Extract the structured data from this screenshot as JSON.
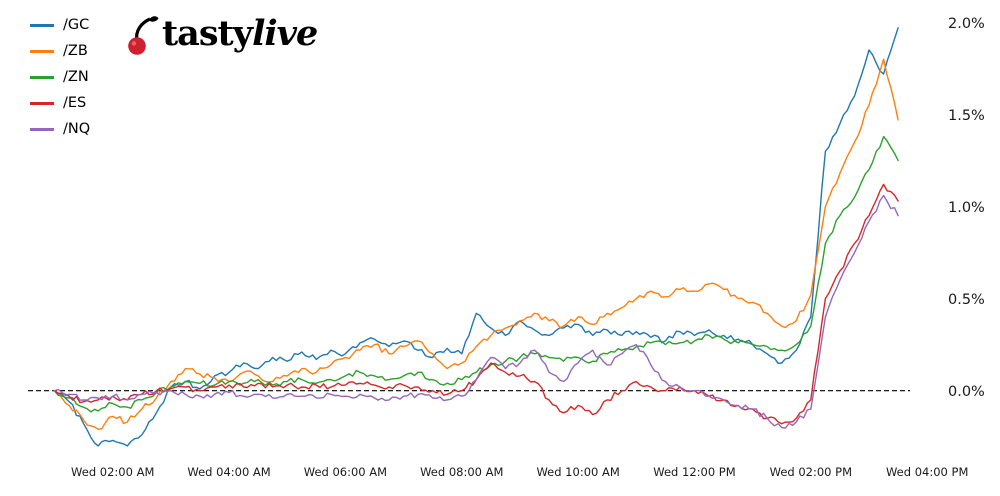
{
  "logo": {
    "tasty": "tasty",
    "live": "live"
  },
  "chart_data": {
    "type": "line",
    "title": "",
    "x_unit": "hour_of_day_wednesday",
    "legend_position": "upper left",
    "grid": false,
    "zero_line": 0.0,
    "xlim": [
      0.75,
      16.1
    ],
    "ylim": [
      -0.42,
      2.1
    ],
    "x_axis": {
      "tick_positions": [
        2,
        4,
        6,
        8,
        10,
        12,
        14,
        16
      ],
      "tick_labels": [
        "Wed 02:00 AM",
        "Wed 04:00 AM",
        "Wed 06:00 AM",
        "Wed 08:00 AM",
        "Wed 10:00 AM",
        "Wed 12:00 PM",
        "Wed 02:00 PM",
        "Wed 04:00 PM"
      ]
    },
    "y_axis": {
      "side": "right",
      "tick_values": [
        0.0,
        0.5,
        1.0,
        1.5,
        2.0
      ],
      "tick_labels": [
        "0.0%",
        "0.5%",
        "1.0%",
        "1.5%",
        "2.0%"
      ]
    },
    "x": [
      1,
      1.25,
      1.5,
      1.75,
      2,
      2.25,
      2.5,
      2.75,
      3,
      3.25,
      3.5,
      3.75,
      4,
      4.25,
      4.5,
      4.75,
      5,
      5.25,
      5.5,
      5.75,
      6,
      6.25,
      6.5,
      6.75,
      7,
      7.25,
      7.5,
      7.75,
      8,
      8.25,
      8.5,
      8.75,
      9,
      9.25,
      9.5,
      9.75,
      10,
      10.25,
      10.5,
      10.75,
      11,
      11.25,
      11.5,
      11.75,
      12,
      12.25,
      12.5,
      12.75,
      13,
      13.25,
      13.5,
      13.75,
      14,
      14.25,
      14.5,
      14.75,
      15,
      15.25,
      15.5
    ],
    "series": [
      {
        "name": "/GC",
        "color": "#1f77b4",
        "values": [
          0.0,
          -0.06,
          -0.18,
          -0.3,
          -0.27,
          -0.3,
          -0.24,
          -0.12,
          0.02,
          0.05,
          0.01,
          0.08,
          0.1,
          0.15,
          0.12,
          0.18,
          0.16,
          0.21,
          0.17,
          0.22,
          0.2,
          0.26,
          0.28,
          0.24,
          0.27,
          0.22,
          0.18,
          0.23,
          0.2,
          0.42,
          0.34,
          0.3,
          0.38,
          0.33,
          0.3,
          0.34,
          0.36,
          0.3,
          0.33,
          0.3,
          0.32,
          0.29,
          0.27,
          0.32,
          0.3,
          0.33,
          0.3,
          0.28,
          0.25,
          0.2,
          0.15,
          0.22,
          0.4,
          1.3,
          1.45,
          1.6,
          1.85,
          1.72,
          1.97
        ]
      },
      {
        "name": "/ZB",
        "color": "#ff7f0e",
        "values": [
          0.0,
          -0.08,
          -0.16,
          -0.21,
          -0.14,
          -0.17,
          -0.1,
          -0.04,
          0.05,
          0.12,
          0.09,
          0.07,
          0.05,
          0.1,
          0.08,
          0.05,
          0.08,
          0.12,
          0.1,
          0.14,
          0.18,
          0.22,
          0.25,
          0.2,
          0.24,
          0.27,
          0.2,
          0.12,
          0.15,
          0.24,
          0.3,
          0.34,
          0.38,
          0.42,
          0.38,
          0.35,
          0.4,
          0.36,
          0.42,
          0.45,
          0.5,
          0.54,
          0.51,
          0.55,
          0.54,
          0.58,
          0.55,
          0.5,
          0.48,
          0.42,
          0.35,
          0.38,
          0.52,
          1.0,
          1.18,
          1.35,
          1.55,
          1.8,
          1.47
        ]
      },
      {
        "name": "/ZN",
        "color": "#2ca02c",
        "values": [
          0.0,
          -0.04,
          -0.09,
          -0.11,
          -0.07,
          -0.09,
          -0.05,
          -0.01,
          0.02,
          0.05,
          0.04,
          0.03,
          0.05,
          0.04,
          0.06,
          0.03,
          0.05,
          0.06,
          0.04,
          0.06,
          0.08,
          0.1,
          0.08,
          0.06,
          0.08,
          0.1,
          0.06,
          0.04,
          0.06,
          0.1,
          0.14,
          0.16,
          0.18,
          0.2,
          0.18,
          0.16,
          0.18,
          0.16,
          0.2,
          0.22,
          0.24,
          0.26,
          0.25,
          0.26,
          0.27,
          0.3,
          0.28,
          0.26,
          0.25,
          0.24,
          0.22,
          0.25,
          0.35,
          0.8,
          0.95,
          1.05,
          1.2,
          1.38,
          1.25
        ]
      },
      {
        "name": "/ES",
        "color": "#d62728",
        "values": [
          0.0,
          -0.03,
          -0.06,
          -0.05,
          -0.03,
          -0.05,
          -0.02,
          0.0,
          0.01,
          0.02,
          0.0,
          0.02,
          0.03,
          0.02,
          0.04,
          0.02,
          0.03,
          0.02,
          0.03,
          0.02,
          0.03,
          0.04,
          0.03,
          0.02,
          0.03,
          0.02,
          0.0,
          -0.02,
          0.0,
          0.06,
          0.15,
          0.1,
          0.08,
          0.05,
          -0.05,
          -0.12,
          -0.08,
          -0.13,
          -0.05,
          0.0,
          0.05,
          0.02,
          0.0,
          0.02,
          0.0,
          -0.03,
          -0.05,
          -0.08,
          -0.1,
          -0.15,
          -0.18,
          -0.15,
          -0.05,
          0.5,
          0.65,
          0.8,
          0.95,
          1.12,
          1.03
        ]
      },
      {
        "name": "/NQ",
        "color": "#9467bd",
        "values": [
          0.0,
          -0.02,
          -0.05,
          -0.04,
          -0.03,
          -0.05,
          -0.02,
          -0.01,
          0.0,
          -0.02,
          -0.03,
          -0.02,
          -0.01,
          -0.03,
          -0.02,
          -0.04,
          -0.02,
          -0.03,
          -0.04,
          -0.02,
          -0.03,
          -0.02,
          -0.04,
          -0.05,
          -0.03,
          -0.02,
          -0.04,
          -0.05,
          -0.03,
          0.06,
          0.18,
          0.12,
          0.15,
          0.22,
          0.1,
          0.05,
          0.15,
          0.22,
          0.14,
          0.2,
          0.25,
          0.14,
          0.05,
          0.02,
          0.0,
          -0.03,
          -0.05,
          -0.08,
          -0.1,
          -0.15,
          -0.2,
          -0.17,
          -0.1,
          0.4,
          0.6,
          0.75,
          0.92,
          1.06,
          0.95
        ]
      }
    ]
  }
}
